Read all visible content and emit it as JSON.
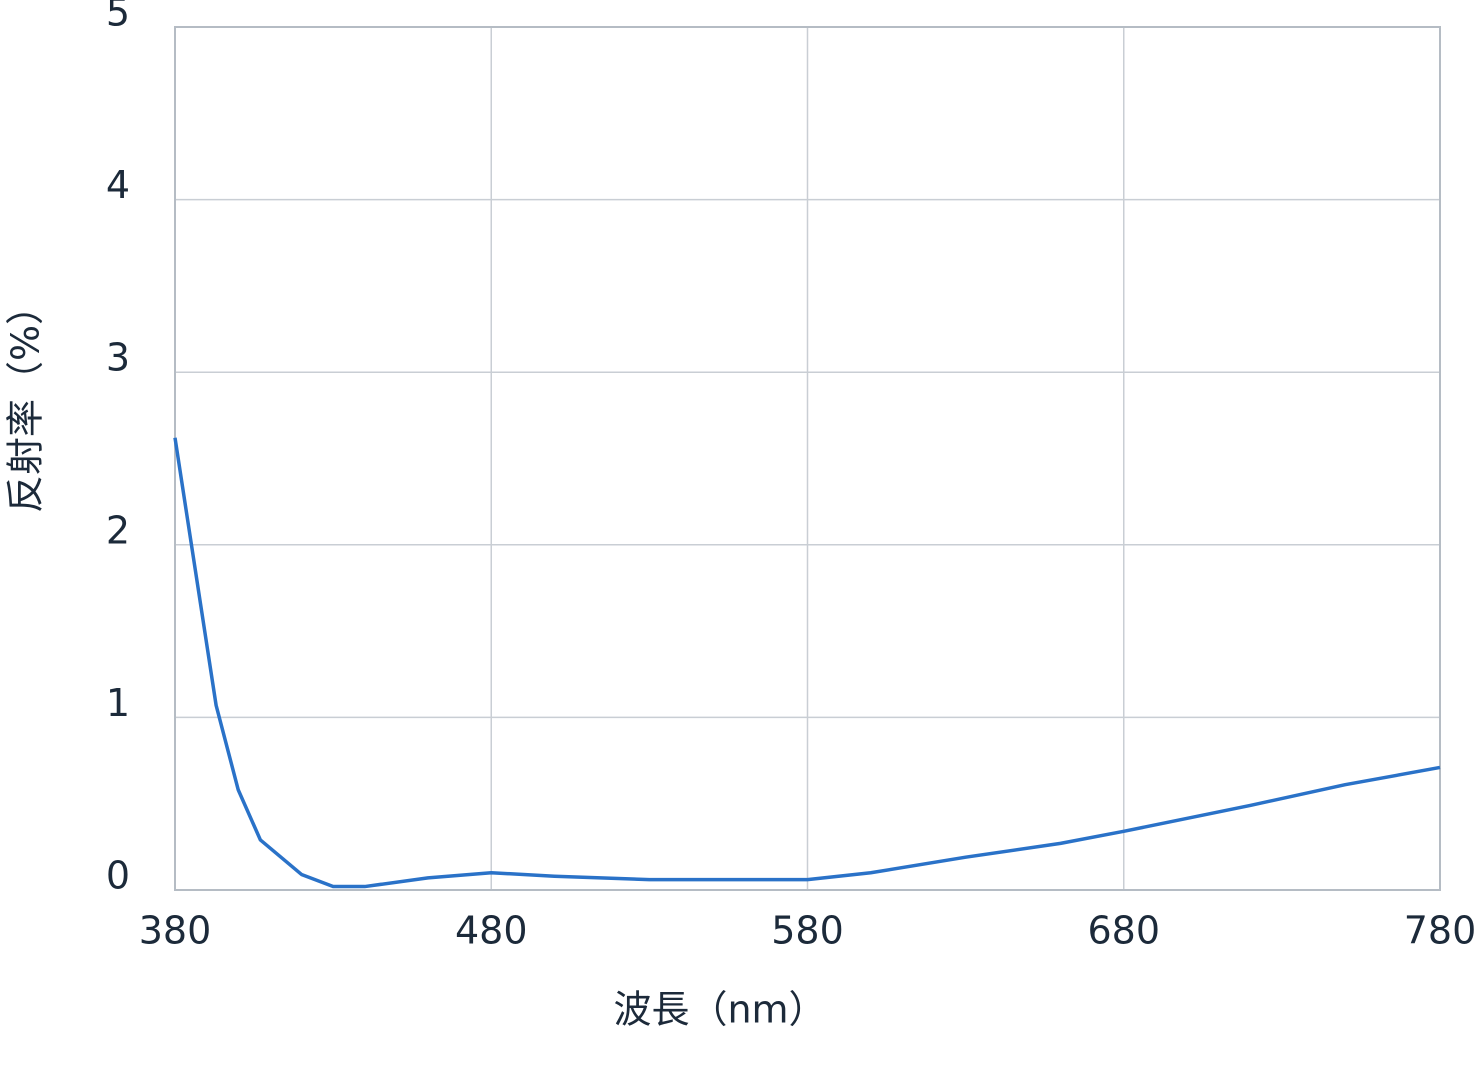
{
  "chart_data": {
    "type": "line",
    "x_label": "波長（nm）",
    "y_label": "反射率（%）",
    "x": [
      380,
      393,
      400,
      407,
      420,
      430,
      440,
      460,
      480,
      500,
      530,
      560,
      580,
      600,
      630,
      660,
      680,
      720,
      750,
      780
    ],
    "series": [
      {
        "name": "反射率",
        "color": "#2a72c8",
        "values": [
          2.62,
          1.07,
          0.58,
          0.29,
          0.09,
          0.02,
          0.02,
          0.07,
          0.1,
          0.08,
          0.06,
          0.06,
          0.06,
          0.1,
          0.19,
          0.27,
          0.34,
          0.49,
          0.61,
          0.71
        ]
      }
    ],
    "xlim": [
      380,
      780
    ],
    "xticks": [
      380,
      480,
      580,
      680,
      780
    ],
    "ylim": [
      0,
      5
    ],
    "yticks": [
      0,
      1,
      2,
      3,
      4,
      5
    ],
    "grid": true
  }
}
